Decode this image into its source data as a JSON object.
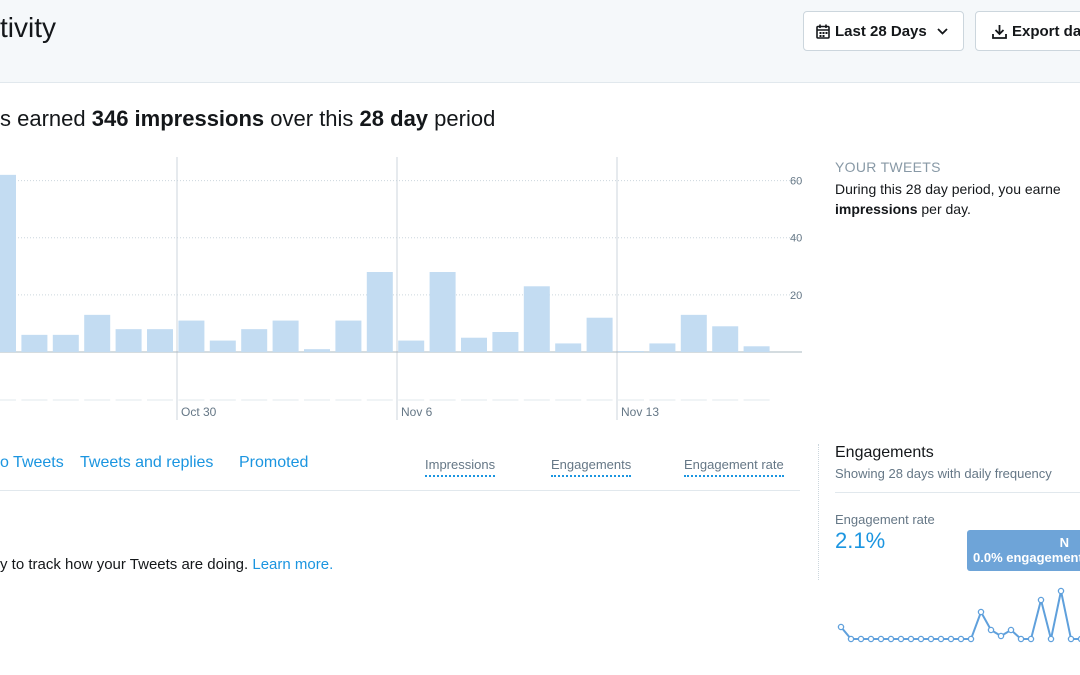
{
  "header": {
    "title": "tivity",
    "date_range_label": "Last 28 Days",
    "export_label": "Export da"
  },
  "summary": {
    "prefix": "s earned ",
    "impressions_value": "346 impressions",
    "middle": " over this ",
    "period_value": "28 day",
    "suffix": " period"
  },
  "chart_data": {
    "type": "bar",
    "title": "",
    "xlabel": "",
    "ylabel": "",
    "ylim": [
      0,
      70
    ],
    "y_ticks": [
      "20",
      "40",
      "60"
    ],
    "x_tick_labels": [
      "Oct 30",
      "Nov 6",
      "Nov 13"
    ],
    "values": [
      62,
      6,
      6,
      13,
      8,
      8,
      11,
      4,
      8,
      11,
      1,
      11,
      28,
      4,
      28,
      5,
      7,
      23,
      3,
      12,
      0,
      3,
      13,
      9,
      2
    ],
    "bar_color": "#c3dcf2",
    "grid": true
  },
  "sidebar": {
    "heading": "YOUR TWEETS",
    "line1": "During this 28 day period, you earne",
    "line2_bold": "impressions",
    "line2_rest": " per day."
  },
  "tabs": {
    "items": [
      "o Tweets",
      "Tweets and replies",
      "Promoted"
    ],
    "metrics": [
      "Impressions",
      "Engagements",
      "Engagement rate"
    ]
  },
  "help": {
    "text": "y to track how your Tweets are doing. ",
    "link": "Learn more."
  },
  "engagements": {
    "title": "Engagements",
    "subtitle": "Showing 28 days with daily frequency",
    "rate_label": "Engagement rate",
    "rate_value": "2.1%",
    "tooltip_line1": "N",
    "tooltip_line2": "0.0% engagement",
    "sparkline": [
      2.0,
      0,
      0,
      0,
      0,
      0,
      0,
      0,
      0,
      0,
      0,
      0,
      0,
      0,
      4.5,
      1.5,
      0.5,
      1.5,
      0,
      0,
      6.5,
      0,
      8.0,
      0,
      0
    ]
  }
}
